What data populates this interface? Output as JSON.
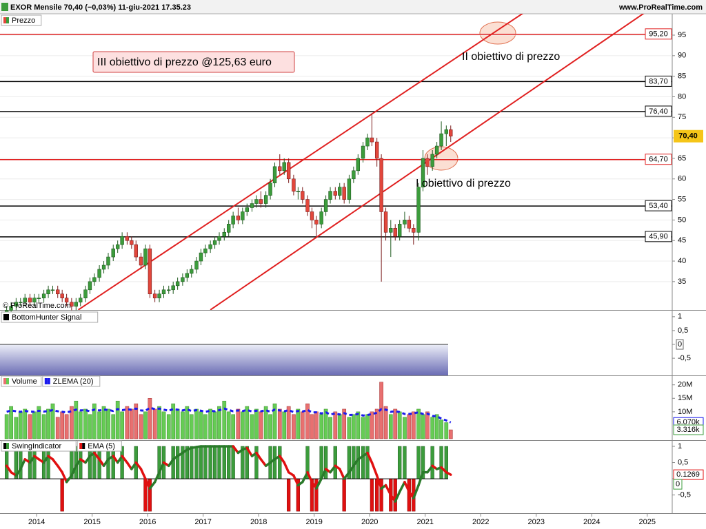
{
  "header": {
    "title": "EXOR Mensile 70,40 (−0,03%) 11-giu-2021 17.35.23",
    "site": "www.ProRealTime.com"
  },
  "chart_data": [
    {
      "type": "candlestick",
      "name": "Prezzo",
      "watermark": "© ProRealTime.com",
      "x": [
        2013.46,
        2013.54,
        2013.63,
        2013.71,
        2013.79,
        2013.88,
        2013.96,
        2014.04,
        2014.13,
        2014.21,
        2014.29,
        2014.38,
        2014.46,
        2014.54,
        2014.63,
        2014.71,
        2014.79,
        2014.88,
        2014.96,
        2015.04,
        2015.13,
        2015.21,
        2015.29,
        2015.38,
        2015.46,
        2015.54,
        2015.63,
        2015.71,
        2015.79,
        2015.88,
        2015.96,
        2016.04,
        2016.13,
        2016.21,
        2016.29,
        2016.38,
        2016.46,
        2016.54,
        2016.63,
        2016.71,
        2016.79,
        2016.88,
        2016.96,
        2017.04,
        2017.13,
        2017.21,
        2017.29,
        2017.38,
        2017.46,
        2017.54,
        2017.63,
        2017.71,
        2017.79,
        2017.88,
        2017.96,
        2018.04,
        2018.13,
        2018.21,
        2018.29,
        2018.38,
        2018.46,
        2018.54,
        2018.63,
        2018.71,
        2018.79,
        2018.88,
        2018.96,
        2019.04,
        2019.13,
        2019.21,
        2019.29,
        2019.38,
        2019.46,
        2019.54,
        2019.63,
        2019.71,
        2019.79,
        2019.88,
        2019.96,
        2020.04,
        2020.13,
        2020.21,
        2020.29,
        2020.38,
        2020.46,
        2020.54,
        2020.63,
        2020.71,
        2020.79,
        2020.88,
        2020.96,
        2021.04,
        2021.13,
        2021.21,
        2021.29,
        2021.38,
        2021.46
      ],
      "open": [
        27.5,
        28,
        29,
        30,
        30,
        31,
        30,
        31,
        31,
        32,
        33,
        33,
        32,
        31,
        30,
        29,
        30,
        31,
        33,
        35,
        36,
        38,
        39,
        41,
        43,
        44,
        46,
        45,
        44,
        41,
        39,
        43,
        32,
        31,
        32,
        33,
        33,
        34,
        35,
        36,
        37,
        38,
        40,
        42,
        43,
        44,
        45,
        46,
        47,
        49,
        51,
        50,
        52,
        53,
        54,
        55,
        54,
        56,
        59,
        63,
        62,
        64,
        60,
        57,
        57,
        55,
        52,
        50,
        49,
        52,
        55,
        57,
        56,
        58,
        55,
        60,
        62,
        65,
        68,
        70,
        69,
        65,
        52,
        47,
        48,
        46,
        49,
        50,
        48,
        47,
        58,
        65,
        63,
        66,
        68,
        71,
        72
      ],
      "high": [
        29,
        30,
        31,
        31,
        32,
        32,
        32,
        32,
        33,
        34,
        34,
        34,
        33,
        32,
        31,
        31,
        32,
        34,
        36,
        37,
        39,
        40,
        42,
        44,
        45,
        47,
        47,
        46,
        45,
        42,
        44,
        44,
        33,
        33,
        34,
        34,
        35,
        36,
        37,
        38,
        39,
        41,
        43,
        44,
        45,
        46,
        47,
        48,
        50,
        52,
        53,
        53,
        54,
        55,
        56,
        57,
        57,
        60,
        64,
        66,
        65,
        65,
        61,
        58,
        58,
        56,
        53,
        51,
        53,
        56,
        58,
        58,
        59,
        59,
        61,
        63,
        66,
        69,
        71,
        76,
        70,
        66,
        53,
        50,
        49,
        50,
        52,
        51,
        49,
        59,
        67,
        66,
        67,
        69,
        74,
        73,
        73
      ],
      "low": [
        27,
        27,
        28,
        29,
        29,
        29,
        29,
        30,
        30,
        31,
        32,
        31,
        30,
        29,
        28,
        28,
        29,
        30,
        32,
        34,
        35,
        37,
        38,
        40,
        42,
        43,
        44,
        43,
        40,
        38,
        38,
        31,
        30,
        30,
        31,
        32,
        32,
        33,
        34,
        35,
        36,
        37,
        39,
        41,
        42,
        43,
        44,
        45,
        46,
        48,
        49,
        49,
        51,
        52,
        53,
        53,
        53,
        55,
        58,
        61,
        61,
        59,
        56,
        55,
        54,
        51,
        48,
        46,
        48,
        51,
        54,
        55,
        55,
        54,
        54,
        59,
        61,
        64,
        67,
        68,
        63,
        35,
        45,
        41,
        45,
        45,
        48,
        47,
        44,
        45,
        57,
        61,
        62,
        65,
        67,
        68,
        69
      ],
      "close": [
        28,
        29,
        30,
        30,
        31,
        30,
        31,
        31,
        32,
        33,
        33,
        32,
        31,
        30,
        29,
        30,
        31,
        33,
        35,
        36,
        38,
        39,
        41,
        43,
        44,
        46,
        45,
        44,
        41,
        39,
        43,
        32,
        31,
        32,
        33,
        33,
        34,
        35,
        36,
        37,
        38,
        40,
        42,
        43,
        44,
        45,
        46,
        47,
        49,
        51,
        50,
        52,
        53,
        54,
        55,
        54,
        56,
        59,
        63,
        62,
        64,
        60,
        57,
        57,
        55,
        52,
        50,
        49,
        52,
        55,
        57,
        56,
        58,
        55,
        60,
        62,
        65,
        68,
        70,
        69,
        65,
        52,
        47,
        48,
        46,
        49,
        50,
        48,
        47,
        58,
        65,
        63,
        66,
        68,
        71,
        72,
        70.4
      ],
      "up_color": "#3c9c3c",
      "down_color": "#e2473c",
      "xlim": [
        2013.34,
        2025.45
      ],
      "xticks": [
        2014,
        2015,
        2016,
        2017,
        2018,
        2019,
        2020,
        2021,
        2022,
        2023,
        2024,
        2025
      ],
      "ylim": [
        28.1,
        100.2
      ],
      "yticks": [
        35,
        40,
        45,
        50,
        55,
        60,
        65,
        70,
        75,
        80,
        85,
        90,
        95
      ],
      "grid": true,
      "levels": [
        {
          "value": 95.2,
          "label": "95,20",
          "color": "#e02020"
        },
        {
          "value": 83.7,
          "label": "83,70",
          "color": "#000000"
        },
        {
          "value": 76.4,
          "label": "76,40",
          "color": "#000000"
        },
        {
          "value": 64.7,
          "label": "64,70",
          "color": "#e02020"
        },
        {
          "value": 53.4,
          "label": "53,40",
          "color": "#000000"
        },
        {
          "value": 45.9,
          "label": "45,90",
          "color": "#000000"
        }
      ],
      "trendlines": [
        {
          "color": "#e02020",
          "points": [
            [
              2014.75,
              28.13
            ],
            [
              2022.78,
              100.5
            ]
          ]
        },
        {
          "color": "#e02020",
          "points": [
            [
              2017.13,
              28.13
            ],
            [
              2024.96,
              100.5
            ]
          ]
        }
      ],
      "annotations": [
        "III obiettivo di prezzo @125,63 euro",
        "II obiettivo di prezzo",
        "I obiettivo di prezzo"
      ],
      "last_price": {
        "value": 70.4,
        "label": "70,40"
      }
    },
    {
      "type": "signal",
      "name": "BottomHunter Signal",
      "ylim": [
        -1.12,
        1.22
      ],
      "yticks": [
        1,
        {
          "value": 0.5,
          "label": "0,5"
        },
        0,
        {
          "value": -0.5,
          "label": "-0,5"
        }
      ]
    },
    {
      "type": "volume",
      "series": [
        {
          "name": "Volume",
          "values": [
            9,
            12,
            8,
            10,
            11,
            9,
            10,
            12,
            9,
            11,
            13,
            8,
            10,
            9,
            12,
            14,
            10,
            11,
            9,
            13,
            10,
            12,
            11,
            9,
            14,
            10,
            12,
            11,
            13,
            9,
            10,
            15,
            11,
            12,
            10,
            9,
            13,
            11,
            10,
            12,
            9,
            11,
            10,
            9,
            11,
            10,
            12,
            14,
            10,
            9,
            11,
            10,
            12,
            9,
            11,
            10,
            12,
            9,
            13,
            11,
            10,
            12,
            9,
            11,
            10,
            13,
            9,
            10,
            9,
            11,
            8,
            10,
            9,
            11,
            8,
            9,
            10,
            8,
            9,
            10,
            11,
            21,
            12,
            9,
            11,
            10,
            8,
            9,
            10,
            11,
            9,
            10,
            8,
            9,
            7,
            6,
            3.316
          ]
        },
        {
          "name": "ZLEMA (20)",
          "color": "#1a1aee",
          "values": [
            10,
            10.5,
            10.2,
            10,
            10.3,
            10.1,
            10,
            10.4,
            10.1,
            10.3,
            10.6,
            10.2,
            10,
            9.8,
            10.2,
            10.8,
            10.5,
            10.6,
            10.2,
            10.8,
            10.5,
            10.8,
            10.7,
            10.3,
            11,
            10.6,
            10.9,
            10.8,
            11.2,
            10.5,
            10.4,
            11.5,
            11,
            11.2,
            10.8,
            10.4,
            11,
            10.8,
            10.5,
            10.9,
            10.3,
            10.6,
            10.4,
            10,
            10.4,
            10.2,
            10.6,
            11.2,
            10.7,
            10.2,
            10.5,
            10.3,
            10.7,
            10.1,
            10.4,
            10.2,
            10.6,
            10,
            10.8,
            10.5,
            10.2,
            10.6,
            9.9,
            10.3,
            10.1,
            10.7,
            9.8,
            9.8,
            9.4,
            9.8,
            9,
            9.4,
            9,
            9.5,
            8.8,
            8.9,
            9.2,
            8.6,
            8.8,
            9.2,
            9.6,
            11,
            10.8,
            10,
            10.2,
            9.9,
            9.2,
            9.2,
            9.4,
            9.8,
            9.2,
            9.3,
            8.5,
            8.3,
            7.5,
            6.8,
            6.07
          ]
        }
      ],
      "ylim": [
        0,
        23.5
      ],
      "yticks": [
        {
          "value": 20,
          "label": "20M"
        },
        {
          "value": 15,
          "label": "15M"
        },
        {
          "value": 10,
          "label": "10M"
        }
      ],
      "tags": [
        {
          "value": 6.07,
          "label": "6.070k",
          "color": "#1a1aee"
        },
        {
          "value": 3.316,
          "label": "3.316k",
          "color": "#3c9c3c"
        }
      ]
    },
    {
      "type": "swing",
      "series": [
        {
          "name": "SwingIndicator",
          "color": "#3c9c3c",
          "values": [
            1,
            0,
            1,
            1,
            0,
            1,
            1,
            0,
            1,
            1,
            0,
            0,
            -1,
            0,
            1,
            1,
            1,
            0,
            1,
            1,
            1,
            0,
            1,
            1,
            0,
            1,
            0,
            0,
            1,
            0,
            -1,
            -1,
            0,
            1,
            1,
            0,
            1,
            1,
            1,
            1,
            1,
            1,
            1,
            1,
            1,
            1,
            1,
            1,
            1,
            1,
            0,
            1,
            1,
            0,
            1,
            0,
            0,
            1,
            1,
            1,
            0,
            -1,
            0,
            -1,
            0,
            1,
            -1,
            -1,
            1,
            1,
            0,
            1,
            0,
            -1,
            1,
            1,
            1,
            1,
            1,
            -1,
            -1,
            -1,
            0,
            -1,
            -1,
            1,
            1,
            -1,
            -1,
            1,
            1,
            0,
            1,
            0,
            1,
            1,
            0
          ]
        },
        {
          "name": "EMA (5)",
          "color": "#e01010",
          "values": [
            0.4,
            0.2,
            0.1,
            0.3,
            0.6,
            0.5,
            0.7,
            0.6,
            0.5,
            0.7,
            0.6,
            0.4,
            0.2,
            -0.1,
            0.1,
            0.4,
            0.6,
            0.5,
            0.7,
            0.8,
            0.6,
            0.4,
            0.6,
            0.7,
            0.5,
            0.7,
            0.5,
            0.3,
            0.5,
            0.3,
            0,
            -0.3,
            -0.1,
            0.2,
            0.5,
            0.4,
            0.6,
            0.7,
            0.8,
            0.9,
            0.95,
            0.98,
            1,
            1,
            1,
            1,
            1,
            1,
            1,
            1,
            0.8,
            0.9,
            0.95,
            0.7,
            0.8,
            0.6,
            0.4,
            0.5,
            0.6,
            0.7,
            0.5,
            0.2,
            0.1,
            -0.2,
            -0.1,
            0.2,
            -0.1,
            -0.3,
            0,
            0.3,
            0.2,
            0.4,
            0.3,
            0,
            0.2,
            0.4,
            0.6,
            0.7,
            0.8,
            0.5,
            0.1,
            -0.3,
            -0.2,
            -0.5,
            -0.7,
            -0.4,
            -0.1,
            -0.4,
            -0.6,
            -0.2,
            0.2,
            0.2,
            0.4,
            0.3,
            0.35,
            0.2,
            0.1269
          ]
        }
      ],
      "ylim": [
        -1.06,
        1.17
      ],
      "yticks": [
        1,
        {
          "value": 0.5,
          "label": "0,5"
        },
        0,
        {
          "value": -0.5,
          "label": "-0,5"
        }
      ]
    }
  ]
}
